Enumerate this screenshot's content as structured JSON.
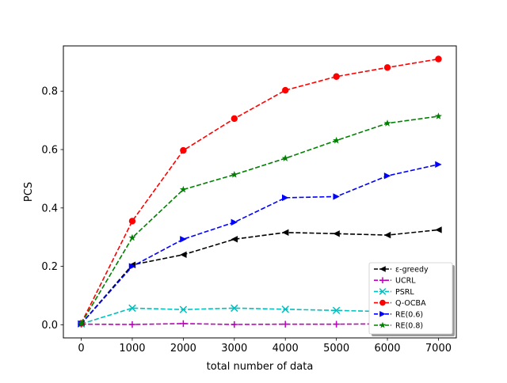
{
  "chart_data": {
    "type": "line",
    "title": "",
    "xlabel": "total number of data",
    "ylabel": "PCS",
    "xlim": [
      -350,
      7350
    ],
    "ylim": [
      -0.045,
      0.955
    ],
    "xticks": [
      0,
      1000,
      2000,
      3000,
      4000,
      5000,
      6000,
      7000
    ],
    "xtick_labels": [
      "0",
      "1000",
      "2000",
      "3000",
      "4000",
      "5000",
      "6000",
      "7000"
    ],
    "yticks": [
      0.0,
      0.2,
      0.4,
      0.6,
      0.8
    ],
    "ytick_labels": [
      "0.0",
      "0.2",
      "0.4",
      "0.6",
      "0.8"
    ],
    "grid": false,
    "legend_position": "lower-right",
    "x": [
      0,
      1000,
      2000,
      3000,
      4000,
      5000,
      6000,
      7000
    ],
    "series": [
      {
        "name": "ε-greedy",
        "color": "#000000",
        "marker": "triangle-left",
        "values": [
          0.003,
          0.205,
          0.24,
          0.293,
          0.316,
          0.312,
          0.307,
          0.325
        ]
      },
      {
        "name": "UCRL",
        "color": "#bf00bf",
        "marker": "plus",
        "values": [
          0.002,
          0.001,
          0.004,
          0.001,
          0.002,
          0.002,
          0.003,
          0.003
        ]
      },
      {
        "name": "PSRL",
        "color": "#00bfbf",
        "marker": "x",
        "values": [
          0.003,
          0.057,
          0.052,
          0.057,
          0.053,
          0.049,
          0.045,
          0.045
        ]
      },
      {
        "name": "Q-OCBA",
        "color": "#ff0000",
        "marker": "circle",
        "values": [
          0.005,
          0.355,
          0.597,
          0.706,
          0.803,
          0.85,
          0.881,
          0.91
        ]
      },
      {
        "name": "RE(0.6)",
        "color": "#0000ff",
        "marker": "triangle-right",
        "values": [
          0.003,
          0.2,
          0.293,
          0.351,
          0.435,
          0.439,
          0.51,
          0.549
        ]
      },
      {
        "name": "RE(0.8)",
        "color": "#008000",
        "marker": "star",
        "values": [
          0.004,
          0.298,
          0.463,
          0.514,
          0.57,
          0.631,
          0.69,
          0.714
        ]
      }
    ]
  }
}
